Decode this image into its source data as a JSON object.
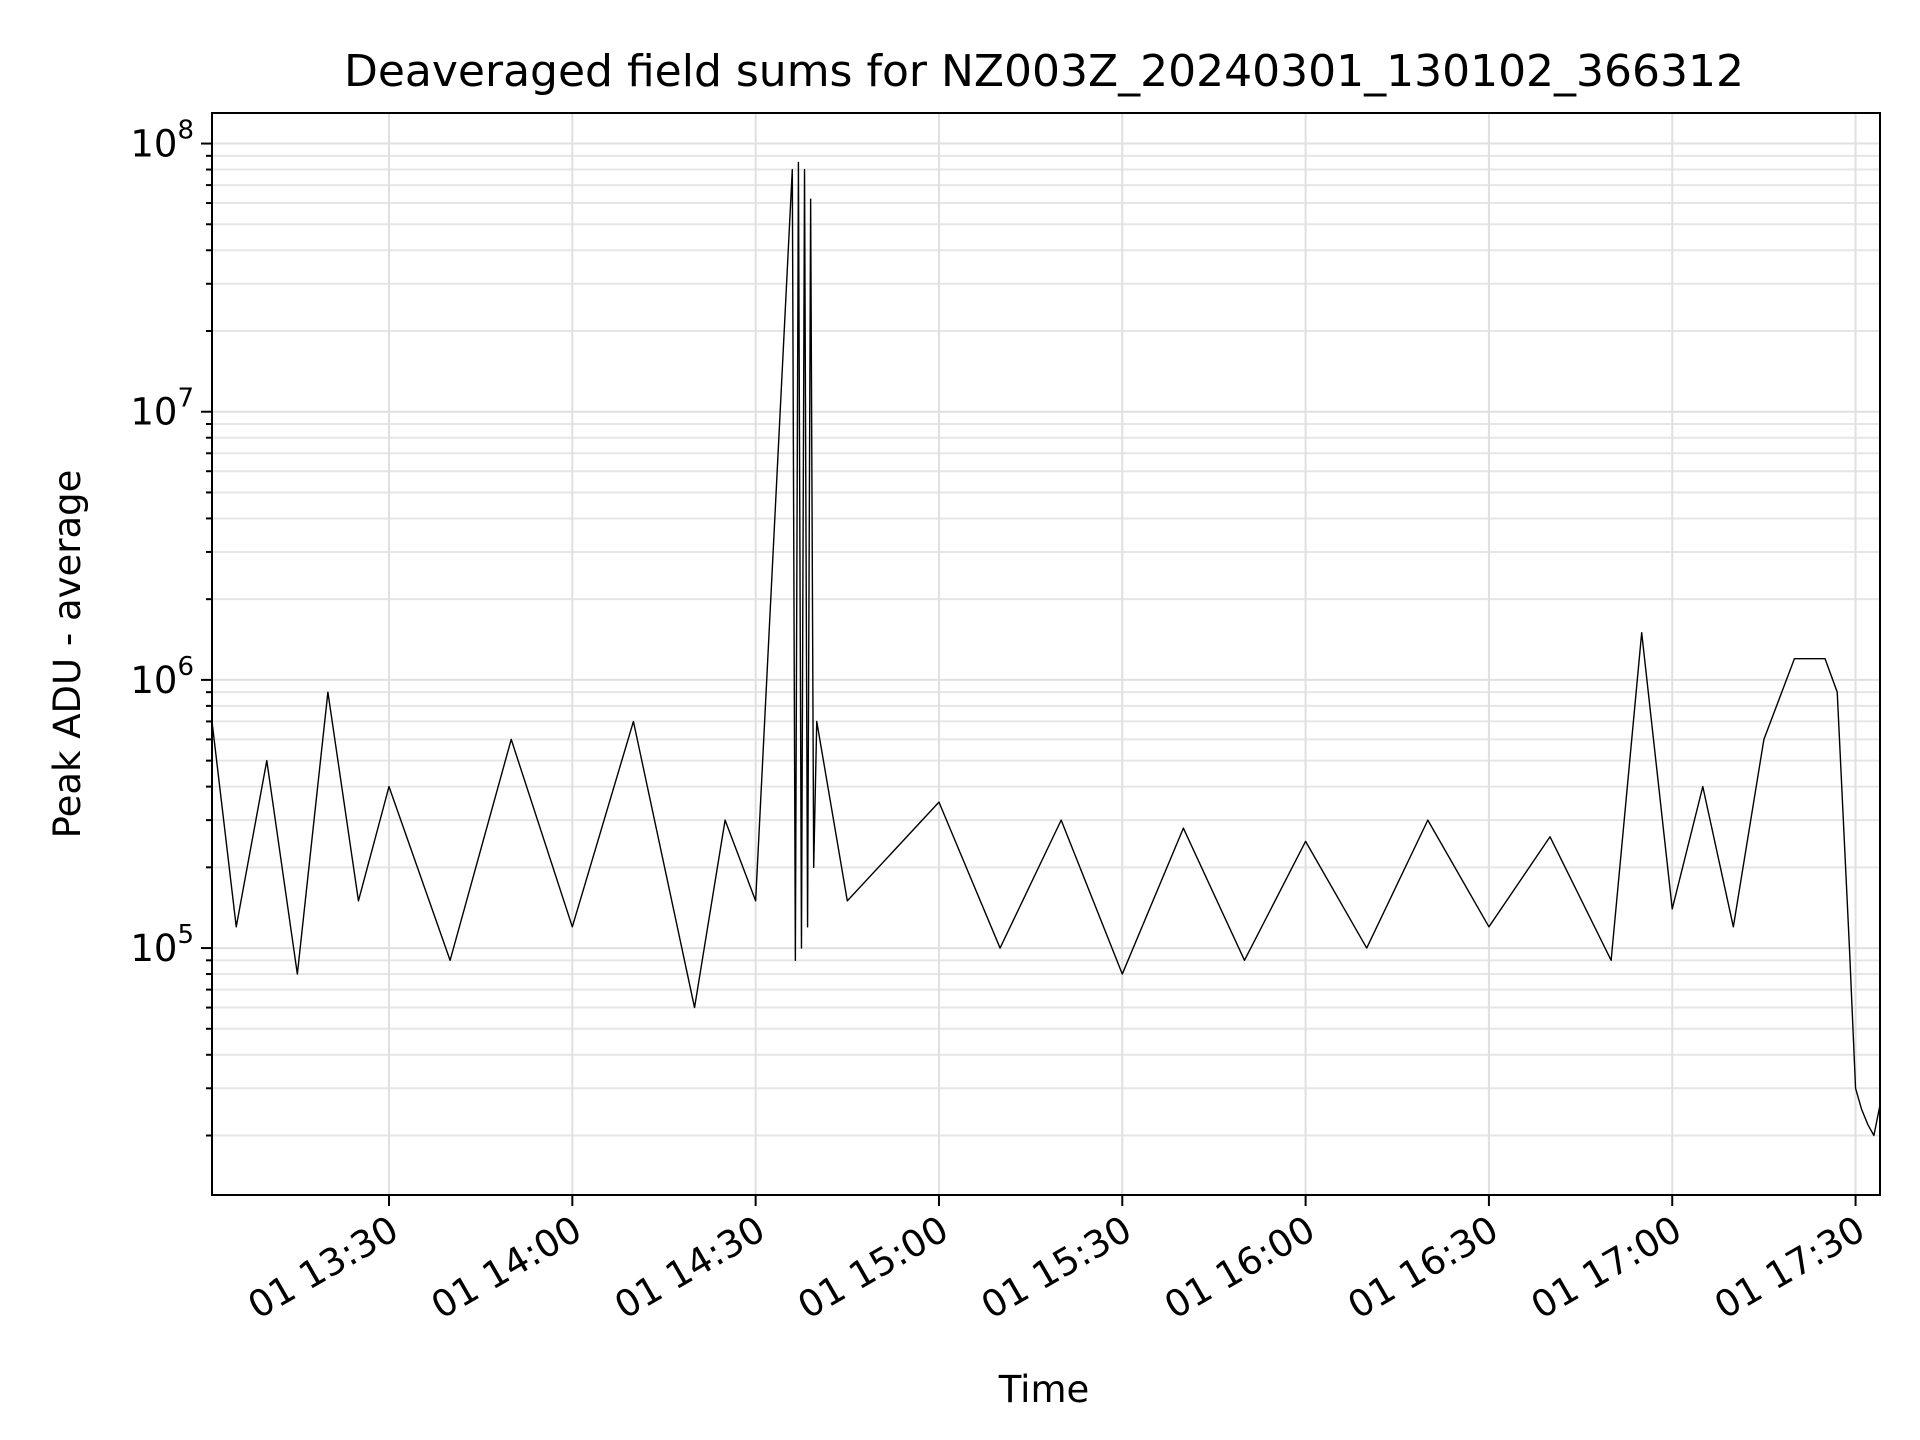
{
  "chart_data": {
    "type": "line",
    "title": "Deaveraged field sums for NZ003Z_20240301_130102_366312",
    "xlabel": "Time",
    "ylabel": "Peak ADU - average",
    "yscale": "log",
    "xlim": [
      "2024-03-01 13:01:02",
      "2024-03-01 17:34:00"
    ],
    "ylim": [
      12000,
      130000000
    ],
    "grid": true,
    "x_ticks": [
      {
        "value": "2024-03-01 13:30:00",
        "label": "01 13:30"
      },
      {
        "value": "2024-03-01 14:00:00",
        "label": "01 14:00"
      },
      {
        "value": "2024-03-01 14:30:00",
        "label": "01 14:30"
      },
      {
        "value": "2024-03-01 15:00:00",
        "label": "01 15:00"
      },
      {
        "value": "2024-03-01 15:30:00",
        "label": "01 15:30"
      },
      {
        "value": "2024-03-01 16:00:00",
        "label": "01 16:00"
      },
      {
        "value": "2024-03-01 16:30:00",
        "label": "01 16:30"
      },
      {
        "value": "2024-03-01 17:00:00",
        "label": "01 17:00"
      },
      {
        "value": "2024-03-01 17:30:00",
        "label": "01 17:30"
      }
    ],
    "y_ticks": [
      {
        "value": 100000,
        "base": "10",
        "exp": "5"
      },
      {
        "value": 1000000,
        "base": "10",
        "exp": "6"
      },
      {
        "value": 10000000,
        "base": "10",
        "exp": "7"
      },
      {
        "value": 100000000,
        "base": "10",
        "exp": "8"
      }
    ],
    "series": [
      {
        "color": "#000000",
        "x": [
          "2024-03-01 13:01:02",
          "2024-03-01 13:05:00",
          "2024-03-01 13:10:00",
          "2024-03-01 13:15:00",
          "2024-03-01 13:20:00",
          "2024-03-01 13:25:00",
          "2024-03-01 13:30:00",
          "2024-03-01 13:40:00",
          "2024-03-01 13:50:00",
          "2024-03-01 14:00:00",
          "2024-03-01 14:10:00",
          "2024-03-01 14:20:00",
          "2024-03-01 14:25:00",
          "2024-03-01 14:30:00",
          "2024-03-01 14:36:00",
          "2024-03-01 14:36:30",
          "2024-03-01 14:37:00",
          "2024-03-01 14:37:30",
          "2024-03-01 14:38:00",
          "2024-03-01 14:38:30",
          "2024-03-01 14:39:00",
          "2024-03-01 14:39:30",
          "2024-03-01 14:40:00",
          "2024-03-01 14:45:00",
          "2024-03-01 15:00:00",
          "2024-03-01 15:10:00",
          "2024-03-01 15:20:00",
          "2024-03-01 15:30:00",
          "2024-03-01 15:40:00",
          "2024-03-01 15:50:00",
          "2024-03-01 16:00:00",
          "2024-03-01 16:10:00",
          "2024-03-01 16:20:00",
          "2024-03-01 16:30:00",
          "2024-03-01 16:40:00",
          "2024-03-01 16:50:00",
          "2024-03-01 16:55:00",
          "2024-03-01 17:00:00",
          "2024-03-01 17:05:00",
          "2024-03-01 17:10:00",
          "2024-03-01 17:15:00",
          "2024-03-01 17:20:00",
          "2024-03-01 17:25:00",
          "2024-03-01 17:27:00",
          "2024-03-01 17:28:00",
          "2024-03-01 17:29:00",
          "2024-03-01 17:30:00",
          "2024-03-01 17:31:00",
          "2024-03-01 17:32:00",
          "2024-03-01 17:33:00",
          "2024-03-01 17:34:00"
        ],
        "y": [
          700000,
          120000,
          500000,
          80000,
          900000,
          150000,
          400000,
          90000,
          600000,
          120000,
          700000,
          60000,
          300000,
          150000,
          80000000,
          90000,
          85000000,
          100000,
          80000000,
          120000,
          62000000,
          200000,
          700000,
          150000,
          350000,
          100000,
          300000,
          80000,
          280000,
          90000,
          250000,
          100000,
          300000,
          120000,
          260000,
          90000,
          1500000,
          140000,
          400000,
          120000,
          600000,
          1200000,
          1200000,
          900000,
          300000,
          100000,
          30000,
          25000,
          22000,
          20000,
          26000
        ]
      }
    ]
  }
}
